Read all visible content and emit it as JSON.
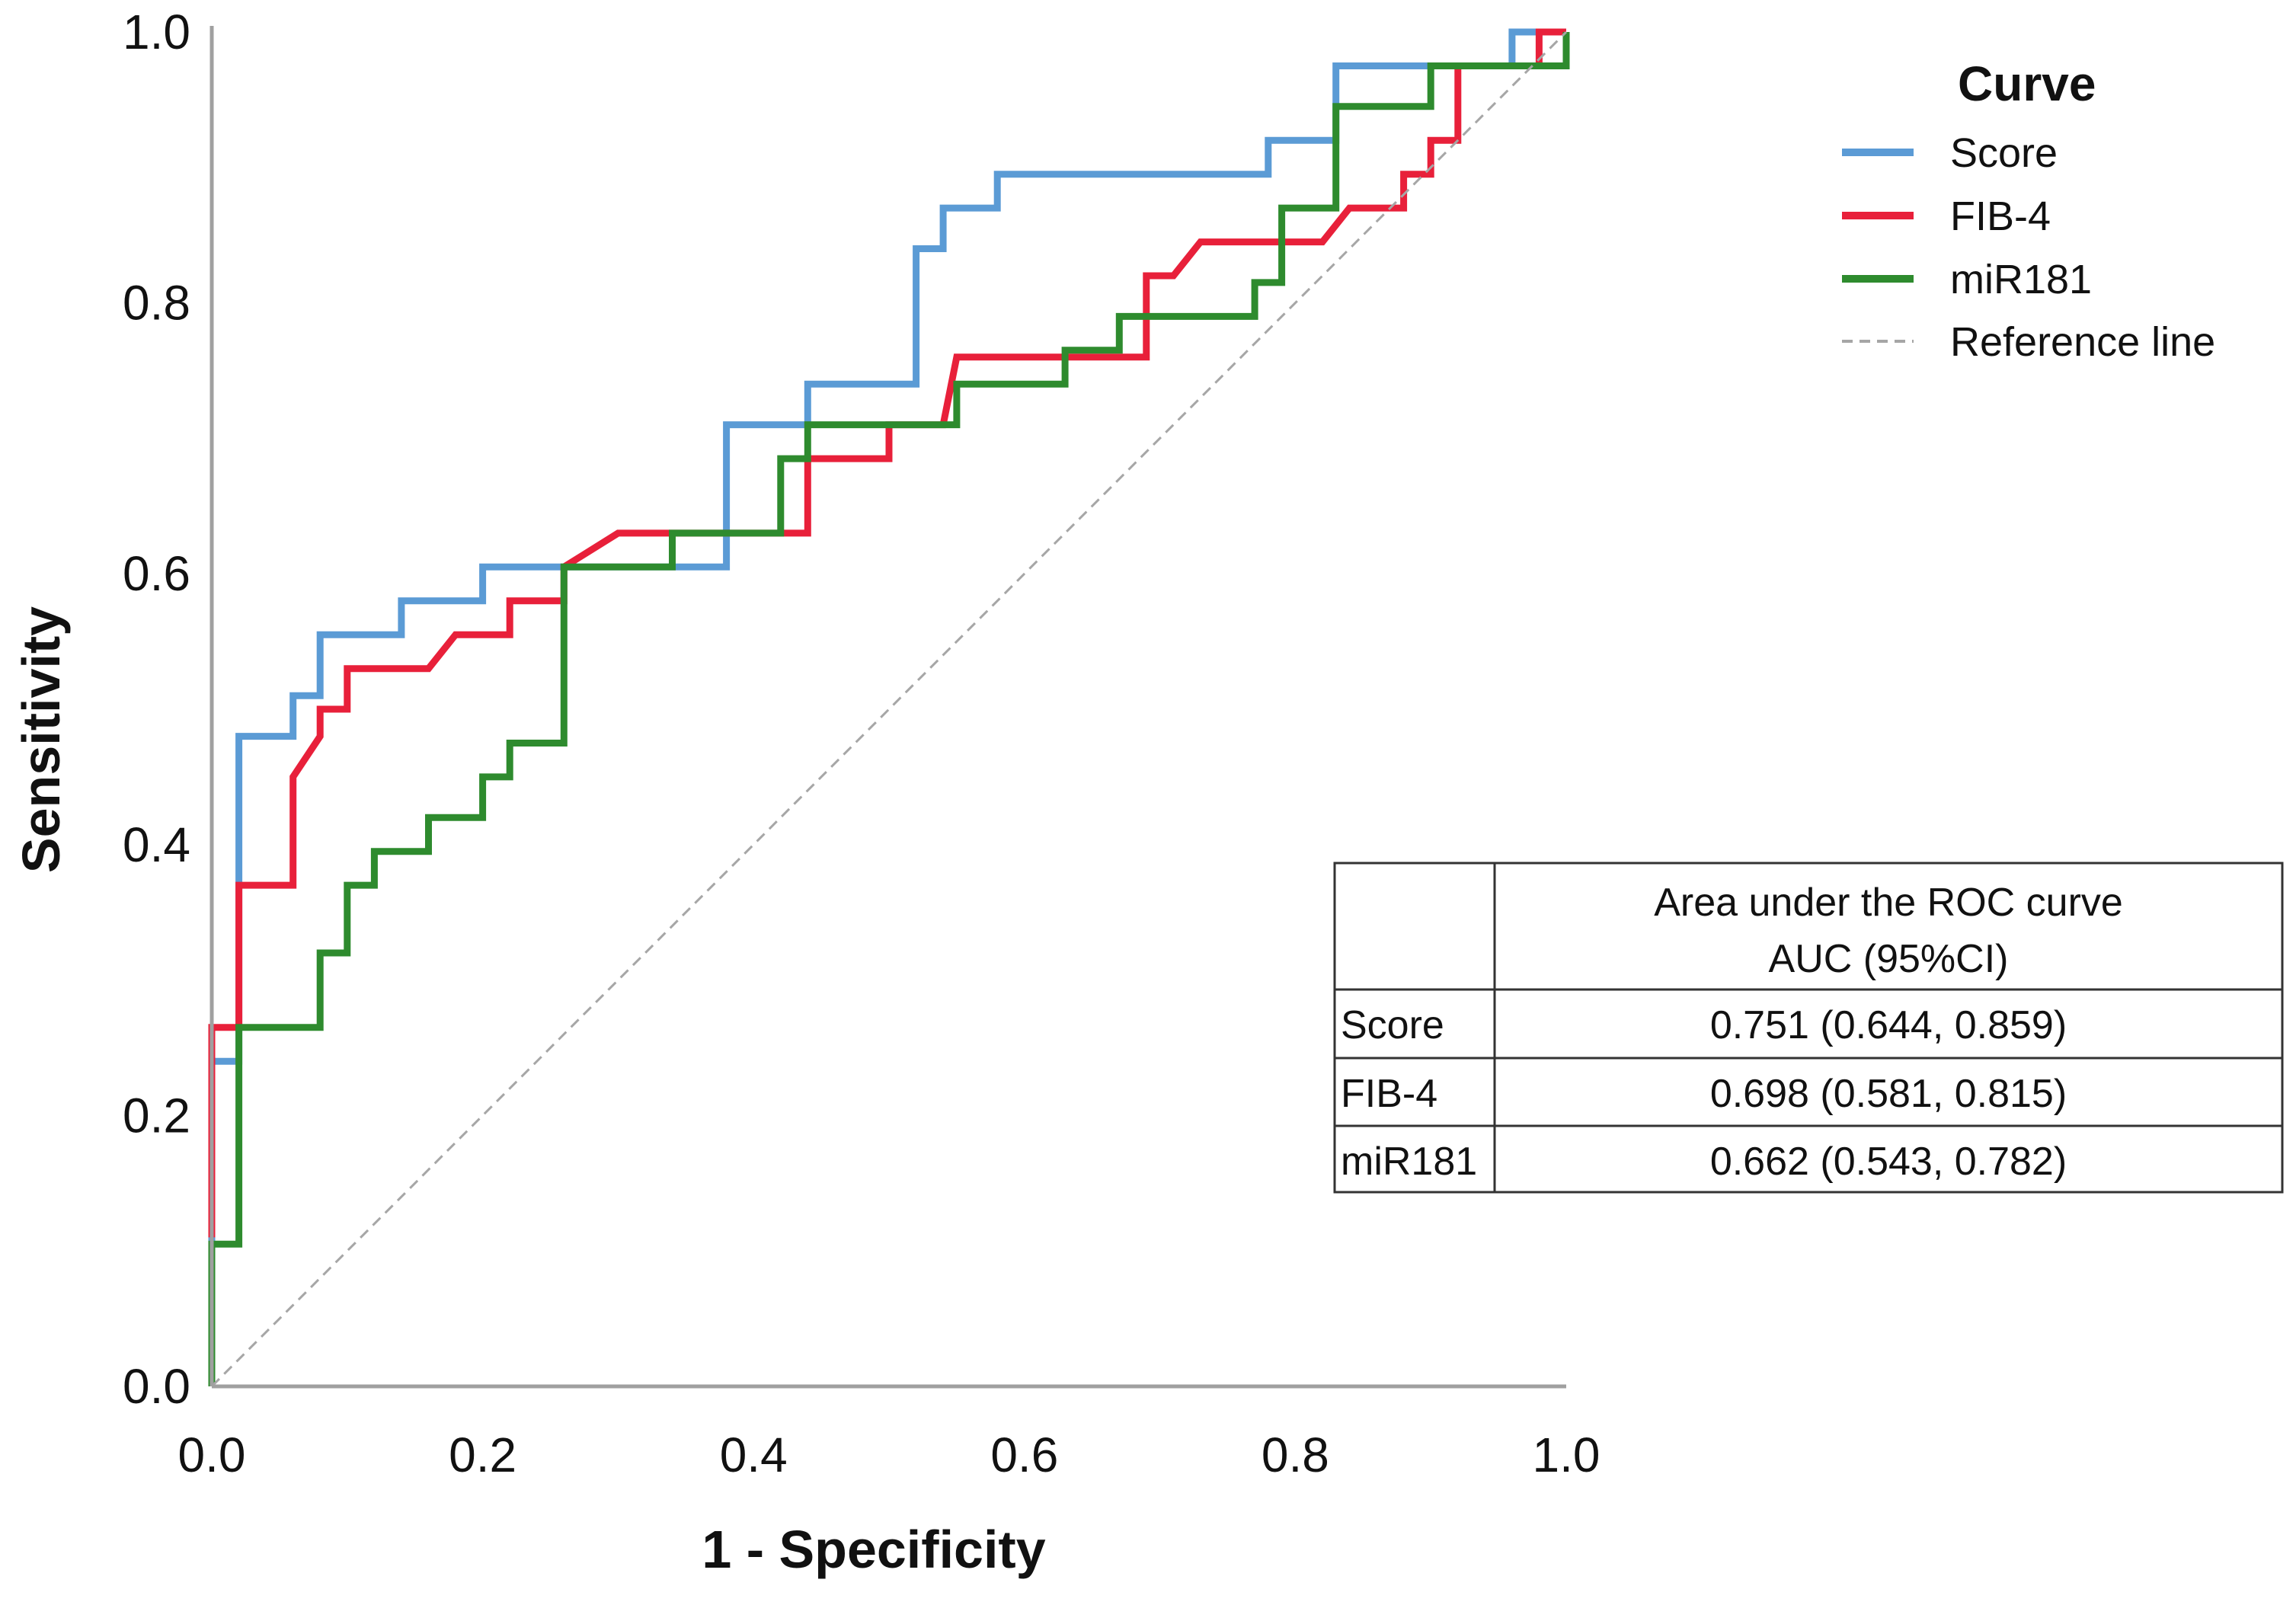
{
  "chart_data": {
    "type": "line",
    "title": "",
    "xlabel": "1 - Specificity",
    "ylabel": "Sensitivity",
    "xlim": [
      0,
      1
    ],
    "ylim": [
      0,
      1
    ],
    "x_ticks": [
      "0.0",
      "0.2",
      "0.4",
      "0.6",
      "0.8",
      "1.0"
    ],
    "y_ticks": [
      "0.0",
      "0.2",
      "0.4",
      "0.6",
      "0.8",
      "1.0"
    ],
    "grid": false,
    "legend": {
      "title": "Curve",
      "position": "top-right",
      "entries": [
        "Score",
        "FIB-4",
        "miR181",
        "Reference line"
      ]
    },
    "series": [
      {
        "name": "Score",
        "color": "#5b9bd5",
        "points": [
          [
            0,
            0
          ],
          [
            0,
            0.24
          ],
          [
            0.02,
            0.24
          ],
          [
            0.02,
            0.48
          ],
          [
            0.06,
            0.48
          ],
          [
            0.06,
            0.51
          ],
          [
            0.08,
            0.51
          ],
          [
            0.08,
            0.555
          ],
          [
            0.14,
            0.555
          ],
          [
            0.14,
            0.58
          ],
          [
            0.2,
            0.58
          ],
          [
            0.2,
            0.605
          ],
          [
            0.26,
            0.605
          ],
          [
            0.38,
            0.605
          ],
          [
            0.38,
            0.71
          ],
          [
            0.44,
            0.71
          ],
          [
            0.44,
            0.74
          ],
          [
            0.52,
            0.74
          ],
          [
            0.52,
            0.84
          ],
          [
            0.54,
            0.84
          ],
          [
            0.54,
            0.87
          ],
          [
            0.58,
            0.87
          ],
          [
            0.58,
            0.895
          ],
          [
            0.78,
            0.895
          ],
          [
            0.78,
            0.92
          ],
          [
            0.83,
            0.92
          ],
          [
            0.83,
            0.975
          ],
          [
            0.96,
            0.975
          ],
          [
            0.96,
            1
          ],
          [
            1,
            1
          ]
        ]
      },
      {
        "name": "FIB-4",
        "color": "#e8203a",
        "points": [
          [
            0,
            0.11
          ],
          [
            0,
            0.265
          ],
          [
            0.02,
            0.265
          ],
          [
            0.02,
            0.37
          ],
          [
            0.06,
            0.37
          ],
          [
            0.06,
            0.45
          ],
          [
            0.08,
            0.48
          ],
          [
            0.08,
            0.5
          ],
          [
            0.1,
            0.5
          ],
          [
            0.1,
            0.53
          ],
          [
            0.16,
            0.53
          ],
          [
            0.18,
            0.555
          ],
          [
            0.22,
            0.555
          ],
          [
            0.22,
            0.58
          ],
          [
            0.26,
            0.58
          ],
          [
            0.26,
            0.605
          ],
          [
            0.3,
            0.63
          ],
          [
            0.34,
            0.63
          ],
          [
            0.44,
            0.63
          ],
          [
            0.44,
            0.685
          ],
          [
            0.5,
            0.685
          ],
          [
            0.5,
            0.71
          ],
          [
            0.54,
            0.71
          ],
          [
            0.55,
            0.76
          ],
          [
            0.66,
            0.76
          ],
          [
            0.69,
            0.76
          ],
          [
            0.69,
            0.82
          ],
          [
            0.71,
            0.82
          ],
          [
            0.73,
            0.845
          ],
          [
            0.82,
            0.845
          ],
          [
            0.84,
            0.87
          ],
          [
            0.88,
            0.87
          ],
          [
            0.88,
            0.895
          ],
          [
            0.9,
            0.895
          ],
          [
            0.9,
            0.92
          ],
          [
            0.92,
            0.92
          ],
          [
            0.92,
            0.975
          ],
          [
            0.98,
            0.975
          ],
          [
            0.98,
            1
          ],
          [
            1,
            1
          ]
        ]
      },
      {
        "name": "miR181",
        "color": "#2e8b2e",
        "points": [
          [
            0,
            0
          ],
          [
            0,
            0.105
          ],
          [
            0.02,
            0.105
          ],
          [
            0.02,
            0.265
          ],
          [
            0.08,
            0.265
          ],
          [
            0.08,
            0.32
          ],
          [
            0.1,
            0.32
          ],
          [
            0.1,
            0.37
          ],
          [
            0.12,
            0.37
          ],
          [
            0.12,
            0.395
          ],
          [
            0.16,
            0.395
          ],
          [
            0.16,
            0.42
          ],
          [
            0.2,
            0.42
          ],
          [
            0.2,
            0.45
          ],
          [
            0.22,
            0.45
          ],
          [
            0.22,
            0.475
          ],
          [
            0.26,
            0.475
          ],
          [
            0.26,
            0.605
          ],
          [
            0.34,
            0.605
          ],
          [
            0.34,
            0.63
          ],
          [
            0.42,
            0.63
          ],
          [
            0.42,
            0.685
          ],
          [
            0.44,
            0.685
          ],
          [
            0.44,
            0.71
          ],
          [
            0.55,
            0.71
          ],
          [
            0.55,
            0.74
          ],
          [
            0.63,
            0.74
          ],
          [
            0.63,
            0.765
          ],
          [
            0.67,
            0.765
          ],
          [
            0.67,
            0.79
          ],
          [
            0.77,
            0.79
          ],
          [
            0.77,
            0.815
          ],
          [
            0.79,
            0.815
          ],
          [
            0.79,
            0.87
          ],
          [
            0.83,
            0.87
          ],
          [
            0.83,
            0.945
          ],
          [
            0.9,
            0.945
          ],
          [
            0.9,
            0.975
          ],
          [
            1,
            0.975
          ],
          [
            1,
            1
          ]
        ]
      },
      {
        "name": "Reference line",
        "color": "#a6a6a6",
        "dashed": true,
        "points": [
          [
            0,
            0
          ],
          [
            1,
            1
          ]
        ]
      }
    ],
    "auc_table": {
      "header_line1": "Area under the ROC curve",
      "header_line2": "AUC (95%CI)",
      "rows": [
        {
          "label": "Score",
          "value": "0.751 (0.644, 0.859)"
        },
        {
          "label": "FIB-4",
          "value": "0.698 (0.581, 0.815)"
        },
        {
          "label": "miR181",
          "value": "0.662 (0.543, 0.782)"
        }
      ]
    }
  }
}
